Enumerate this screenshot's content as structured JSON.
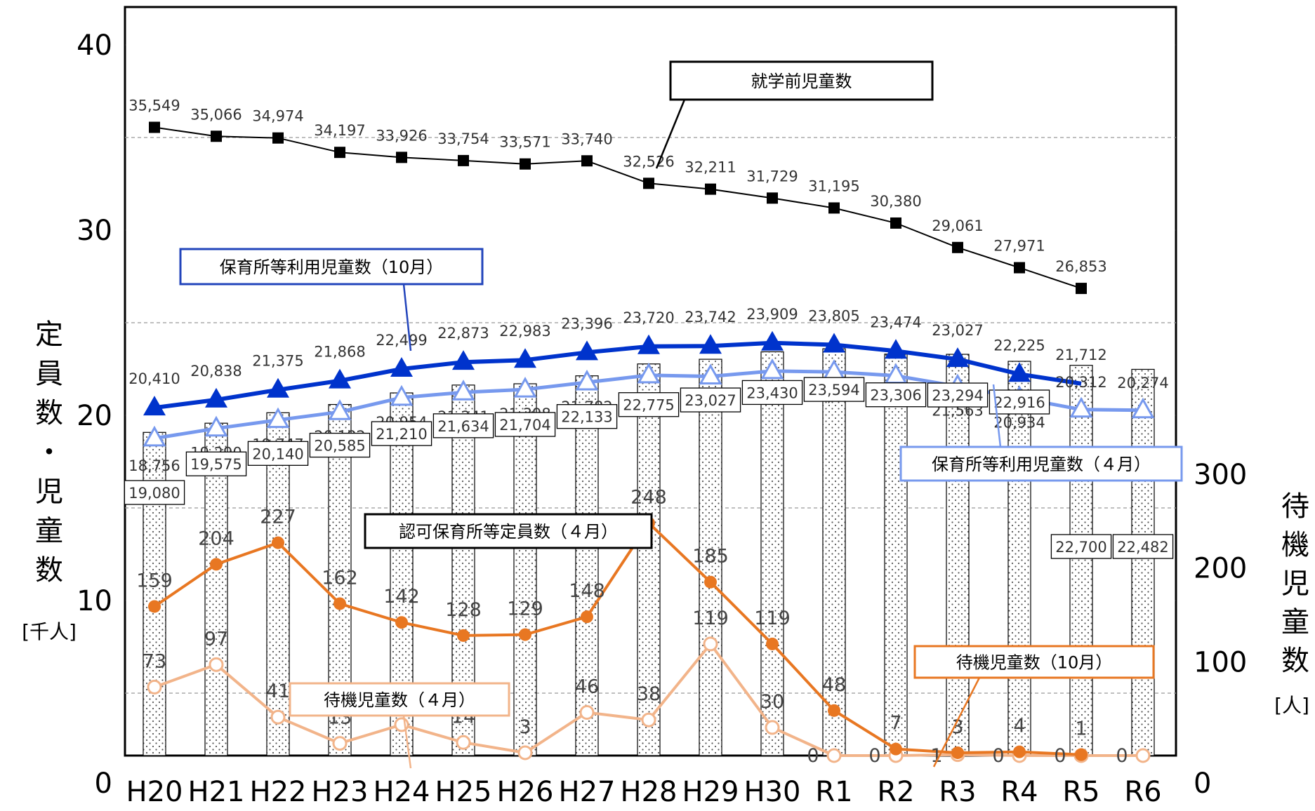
{
  "chart_data": {
    "type": "bar+line",
    "categories": [
      "H20",
      "H21",
      "H22",
      "H23",
      "H24",
      "H25",
      "H26",
      "H27",
      "H28",
      "H29",
      "H30",
      "R1",
      "R2",
      "R3",
      "R4",
      "R5",
      "R6"
    ],
    "left_axis": {
      "ticks": [
        "0",
        "10",
        "20",
        "30",
        "40"
      ],
      "ylim": [
        0,
        40
      ],
      "title": "定員数・児童数",
      "unit": "[千人]"
    },
    "right_axis": {
      "ticks": [
        "0",
        "100",
        "200",
        "300"
      ],
      "ylim": [
        0,
        300
      ],
      "title": "待機児童数",
      "unit": "[人]"
    },
    "series": [
      {
        "name": "就学前児童数",
        "kind": "line",
        "axis": "left",
        "color": "#000000",
        "values": [
          35549,
          35066,
          34974,
          34197,
          33926,
          33754,
          33571,
          33740,
          32526,
          32211,
          31729,
          31195,
          30380,
          29061,
          27971,
          26853,
          null
        ],
        "labels": [
          "35,549",
          "35,066",
          "34,974",
          "34,197",
          "33,926",
          "33,754",
          "33,571",
          "33,740",
          "32,526",
          "32,211",
          "31,729",
          "31,195",
          "30,380",
          "29,061",
          "27,971",
          "26,853",
          ""
        ]
      },
      {
        "name": "保育所等利用児童数（10月）",
        "kind": "line",
        "axis": "left",
        "color": "#0033CC",
        "values": [
          20410,
          20838,
          21375,
          21868,
          22499,
          22873,
          22983,
          23396,
          23720,
          23742,
          23909,
          23805,
          23474,
          23027,
          22225,
          21712,
          null
        ],
        "labels": [
          "20,410",
          "20,838",
          "21,375",
          "21,868",
          "22,499",
          "22,873",
          "22,983",
          "23,396",
          "23,720",
          "23,742",
          "23,909",
          "23,805",
          "23,474",
          "23,027",
          "22,225",
          "21,712",
          ""
        ]
      },
      {
        "name": "保育所等利用児童数（４月）",
        "kind": "line",
        "axis": "left",
        "color": "#7799EE",
        "values": [
          18756,
          19290,
          19747,
          20182,
          20954,
          21241,
          21398,
          21782,
          22163,
          22104,
          22390,
          22343,
          22138,
          21563,
          20934,
          20312,
          20274
        ],
        "labels": [
          "18,756",
          "19,290",
          "19,747",
          "20,182",
          "20,954",
          "21,241",
          "21,398",
          "21,782",
          "22,163",
          "22,104",
          "22,390",
          "22,343",
          "22,138",
          "21,563",
          "20,934",
          "20,312",
          "20,274"
        ]
      },
      {
        "name": "認可保育所等定員数（４月）",
        "kind": "bar",
        "axis": "left",
        "color": "#ffffff",
        "values": [
          19080,
          19575,
          20140,
          20585,
          21210,
          21634,
          21704,
          22133,
          22775,
          23027,
          23430,
          23594,
          23306,
          23294,
          22916,
          22700,
          22482
        ],
        "labels": [
          "19,080",
          "19,575",
          "20,140",
          "20,585",
          "21,210",
          "21,634",
          "21,704",
          "22,133",
          "22,775",
          "23,027",
          "23,430",
          "23,594",
          "23,306",
          "23,294",
          "22,916",
          "22,700",
          "22,482"
        ]
      },
      {
        "name": "待機児童数（10月）",
        "kind": "line",
        "axis": "right",
        "color": "#E87722",
        "values": [
          159,
          204,
          227,
          162,
          142,
          128,
          129,
          148,
          248,
          185,
          119,
          48,
          7,
          3,
          4,
          1,
          null
        ],
        "labels": [
          "159",
          "204",
          "227",
          "162",
          "142",
          "128",
          "129",
          "148",
          "248",
          "185",
          "119",
          "48",
          "7",
          "3",
          "4",
          "1",
          ""
        ]
      },
      {
        "name": "待機児童数（４月）",
        "kind": "line",
        "axis": "right",
        "color": "#F2B48A",
        "values": [
          73,
          97,
          41,
          13,
          33,
          14,
          3,
          46,
          38,
          119,
          30,
          0,
          0,
          1,
          0,
          0,
          0
        ],
        "labels": [
          "73",
          "97",
          "41",
          "13",
          "33",
          "14",
          "3",
          "46",
          "38",
          "119",
          "30",
          "0",
          "0",
          "1",
          "0",
          "0",
          "0"
        ]
      }
    ]
  }
}
